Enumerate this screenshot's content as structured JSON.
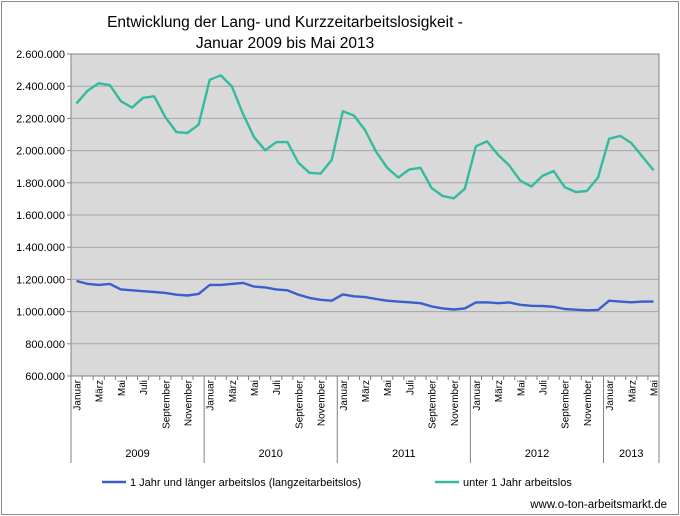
{
  "chart_data": {
    "type": "line",
    "title": "Entwicklung der Lang- und Kurzzeitarbeitslosigkeit -",
    "subtitle": "Januar 2009 bis Mai 2013",
    "source": "www.o-ton-arbeitsmarkt.de",
    "ylim": [
      600000,
      2600000
    ],
    "ytick_labels": [
      "600.000",
      "800.000",
      "1.000.000",
      "1.200.000",
      "1.400.000",
      "1.600.000",
      "1.800.000",
      "2.000.000",
      "2.200.000",
      "2.400.000",
      "2.600.000"
    ],
    "x_month_labels": [
      "Januar",
      "März",
      "Mai",
      "Juli",
      "September",
      "November"
    ],
    "years": [
      {
        "label": "2009",
        "months": 12
      },
      {
        "label": "2010",
        "months": 12
      },
      {
        "label": "2011",
        "months": 12
      },
      {
        "label": "2012",
        "months": 12
      },
      {
        "label": "2013",
        "months": 5
      }
    ],
    "grid": true,
    "legend_position": "bottom",
    "series": [
      {
        "name": "1 Jahr und länger arbeitslos (langzeitarbeitslos)",
        "color": "#3a5fcd",
        "values": [
          1190000,
          1172000,
          1166000,
          1172000,
          1138000,
          1132000,
          1127000,
          1122000,
          1116000,
          1105000,
          1100000,
          1110000,
          1165000,
          1166000,
          1172000,
          1178000,
          1155000,
          1150000,
          1138000,
          1132000,
          1105000,
          1085000,
          1073000,
          1068000,
          1107000,
          1095000,
          1090000,
          1078000,
          1068000,
          1062000,
          1058000,
          1052000,
          1032000,
          1020000,
          1013000,
          1020000,
          1057000,
          1058000,
          1052000,
          1057000,
          1042000,
          1036000,
          1035000,
          1030000,
          1016000,
          1012000,
          1008000,
          1010000,
          1068000,
          1062000,
          1058000,
          1062000,
          1062000
        ]
      },
      {
        "name": "unter 1 Jahr arbeitslos",
        "color": "#33bba0",
        "values": [
          2293000,
          2372000,
          2418000,
          2407000,
          2307000,
          2267000,
          2328000,
          2337000,
          2208000,
          2115000,
          2110000,
          2161000,
          2440000,
          2468000,
          2398000,
          2228000,
          2083000,
          2002000,
          2052000,
          2054000,
          1924000,
          1862000,
          1857000,
          1942000,
          2244000,
          2218000,
          2128000,
          1993000,
          1893000,
          1833000,
          1883000,
          1893000,
          1768000,
          1718000,
          1704000,
          1763000,
          2027000,
          2057000,
          1973000,
          1908000,
          1813000,
          1777000,
          1843000,
          1873000,
          1773000,
          1743000,
          1749000,
          1833000,
          2073000,
          2091000,
          2047000,
          1963000,
          1878000
        ]
      }
    ]
  }
}
